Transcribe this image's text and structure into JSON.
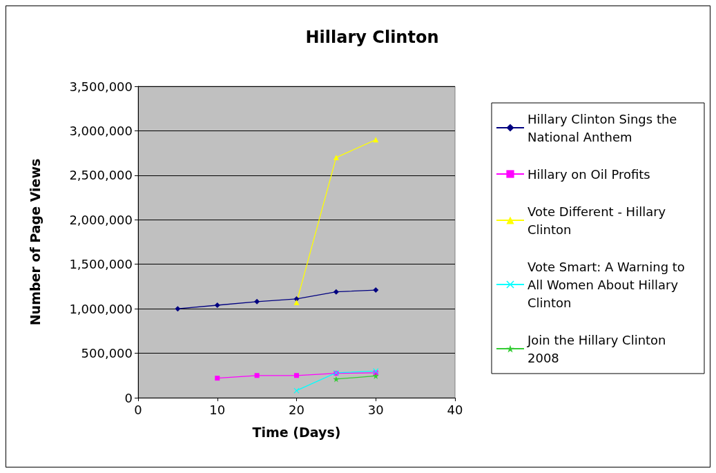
{
  "chart_data": {
    "type": "line",
    "title": "Hillary Clinton",
    "xlabel": "Time (Days)",
    "ylabel": "Number of Page Views",
    "xlim": [
      0,
      40
    ],
    "xticks": [
      0,
      10,
      20,
      30,
      40
    ],
    "ylim": [
      0,
      3500000
    ],
    "yticks": [
      0,
      {
        "value": 500000,
        "label": "500,000"
      },
      {
        "value": 1000000,
        "label": "1,000,000"
      },
      {
        "value": 1500000,
        "label": "1,500,000"
      },
      {
        "value": 2000000,
        "label": "2,000,000"
      },
      {
        "value": 2500000,
        "label": "2,500,000"
      },
      {
        "value": 3000000,
        "label": "3,000,000"
      },
      {
        "value": 3500000,
        "label": "3,500,000"
      }
    ],
    "grid": "y",
    "legend": "right",
    "series": [
      {
        "name": "Hillary Clinton Sings the National Anthem",
        "color": "#000080",
        "marker": "diamond",
        "x": [
          5,
          10,
          15,
          20,
          25,
          30
        ],
        "values": [
          1000000,
          1040000,
          1080000,
          1110000,
          1190000,
          1210000
        ]
      },
      {
        "name": "Hillary on Oil Profits",
        "color": "#ff00ff",
        "marker": "square",
        "x": [
          10,
          15,
          20,
          25,
          30
        ],
        "values": [
          220000,
          250000,
          250000,
          275000,
          280000
        ]
      },
      {
        "name": "Vote Different - Hillary Clinton",
        "color": "#ffff00",
        "marker": "triangle",
        "x": [
          20,
          25,
          30
        ],
        "values": [
          1070000,
          2700000,
          2900000
        ]
      },
      {
        "name": "Vote Smart: A Warning to All Women About Hillary Clinton",
        "color": "#00ffff",
        "marker": "cross",
        "x": [
          20,
          25,
          30
        ],
        "values": [
          80000,
          280000,
          300000
        ]
      },
      {
        "name": "Join the Hillary Clinton 2008",
        "color": "#33cc33",
        "marker": "star",
        "x": [
          25,
          30
        ],
        "values": [
          210000,
          245000
        ]
      }
    ]
  }
}
